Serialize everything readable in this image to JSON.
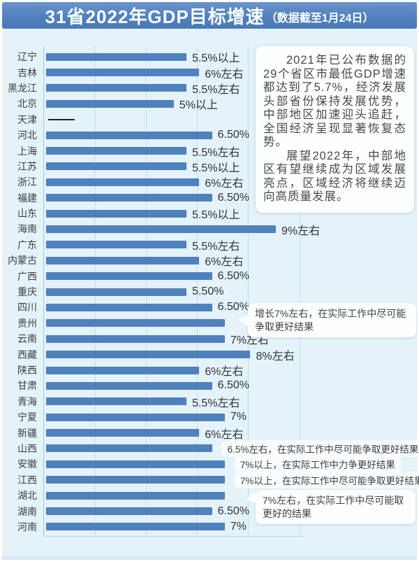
{
  "title": {
    "main": "31省2022年GDP目标增速",
    "suffix": "（数据截至1月24日）"
  },
  "colors": {
    "banner_blue": "#4e80bd",
    "bar_blue": "#4f81bd",
    "page_background": "#e4f2f9",
    "bottom_band": "#d6eaf5",
    "note_background": "#fdfefe"
  },
  "note_box": {
    "paragraphs": [
      "2021年已公布数据的29个省区市最低GDP增速都达到了5.7%，经济发展头部省份保持发展优势，中部地区加速迎头追赶，全国经济呈现显著恢复态势。",
      "展望2022年，中部地区有望继续成为区域发展亮点，区域经济将继续迈向高质量发展。"
    ]
  },
  "callouts": [
    {
      "target": "贵州",
      "text": "增长7%左右，在实际工作中尽可能争取更好结果"
    },
    {
      "target": "湖北",
      "text": "7%左右，在实际工作中尽可能取更好的结果"
    }
  ],
  "chart_data": {
    "type": "bar",
    "orientation": "horizontal",
    "title": "31省2022年GDP目标增速（数据截至1月24日）",
    "xlabel": "",
    "ylabel": "",
    "xlim": [
      0,
      10
    ],
    "grid": true,
    "grid_step": 2,
    "bar_color": "#4f81bd",
    "no_data_display": "——",
    "categories": [
      "辽宁",
      "吉林",
      "黑龙江",
      "北京",
      "天津",
      "河北",
      "上海",
      "江苏",
      "浙江",
      "福建",
      "山东",
      "海南",
      "广东",
      "内蒙古",
      "广西",
      "重庆",
      "四川",
      "贵州",
      "云南",
      "西藏",
      "陕西",
      "甘肃",
      "青海",
      "宁夏",
      "新疆",
      "山西",
      "安徽",
      "江西",
      "湖北",
      "湖南",
      "河南"
    ],
    "values": [
      5.5,
      6,
      5.5,
      5,
      null,
      6.5,
      5.5,
      5.5,
      6,
      6.5,
      5.5,
      9,
      5.5,
      6,
      6.5,
      5.5,
      6.5,
      7,
      7,
      8,
      6,
      6.5,
      5.5,
      7,
      6,
      6.5,
      7,
      7,
      7,
      6.5,
      7
    ],
    "labels": [
      "5.5%以上",
      "6%左右",
      "5.5%左右",
      "5%以上",
      "",
      "6.50%",
      "5.5%左右",
      "5.5%以上",
      "6%左右",
      "6.50%",
      "5.5%以上",
      "9%左右",
      "5.5%左右",
      "6%左右",
      "6.50%",
      "5.50%",
      "6.50%",
      "",
      "7%左右",
      "8%左右",
      "6%左右",
      "6.50%",
      "5.5%左右",
      "7%",
      "6%左右",
      "6.5%左右，在实际工作中尽可能争取更好结果",
      "7%以上，在实际工作中力争更好结果",
      "7%以上，在实际工作中尽可能争取更好结果",
      "",
      "6.50%",
      "7%"
    ]
  }
}
